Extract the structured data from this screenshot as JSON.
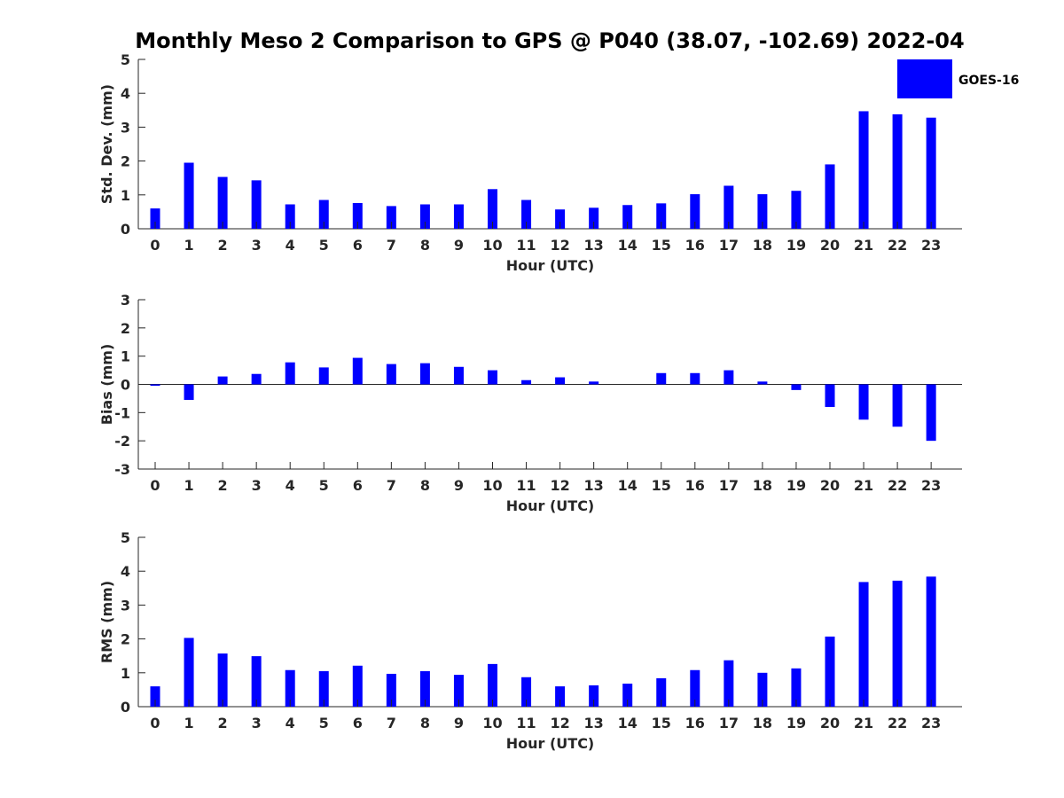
{
  "title": "Monthly Meso 2 Comparison to GPS @ P040 (38.07, -102.69) 2022-04",
  "legend": {
    "label": "GOES-16",
    "color": "#0000ff"
  },
  "chart_data": [
    {
      "type": "bar",
      "panel": "std-dev",
      "xlabel": "Hour (UTC)",
      "ylabel": "Std. Dev. (mm)",
      "ylim": [
        0,
        5
      ],
      "yticks": [
        0,
        1,
        2,
        3,
        4,
        5
      ],
      "categories": [
        "0",
        "1",
        "2",
        "3",
        "4",
        "5",
        "6",
        "7",
        "8",
        "9",
        "10",
        "11",
        "12",
        "13",
        "14",
        "15",
        "16",
        "17",
        "18",
        "19",
        "20",
        "21",
        "22",
        "23"
      ],
      "series": [
        {
          "name": "GOES-16",
          "color": "#0000ff",
          "values": [
            0.6,
            1.95,
            1.53,
            1.43,
            0.72,
            0.85,
            0.76,
            0.67,
            0.72,
            0.72,
            1.17,
            0.85,
            0.57,
            0.62,
            0.7,
            0.75,
            1.02,
            1.27,
            1.02,
            1.12,
            1.9,
            3.47,
            3.38,
            3.28
          ]
        }
      ],
      "legend": true
    },
    {
      "type": "bar",
      "panel": "bias",
      "xlabel": "Hour (UTC)",
      "ylabel": "Bias (mm)",
      "ylim": [
        -3,
        3
      ],
      "yticks": [
        -3,
        -2,
        -1,
        0,
        1,
        2,
        3
      ],
      "zero_line": true,
      "categories": [
        "0",
        "1",
        "2",
        "3",
        "4",
        "5",
        "6",
        "7",
        "8",
        "9",
        "10",
        "11",
        "12",
        "13",
        "14",
        "15",
        "16",
        "17",
        "18",
        "19",
        "20",
        "21",
        "22",
        "23"
      ],
      "series": [
        {
          "name": "GOES-16",
          "color": "#0000ff",
          "values": [
            -0.05,
            -0.55,
            0.28,
            0.37,
            0.78,
            0.6,
            0.94,
            0.72,
            0.75,
            0.62,
            0.5,
            0.15,
            0.25,
            0.1,
            0.0,
            0.4,
            0.4,
            0.5,
            0.1,
            -0.2,
            -0.8,
            -1.25,
            -1.5,
            -2.0
          ]
        }
      ]
    },
    {
      "type": "bar",
      "panel": "rms",
      "xlabel": "Hour (UTC)",
      "ylabel": "RMS (mm)",
      "ylim": [
        0,
        5
      ],
      "yticks": [
        0,
        1,
        2,
        3,
        4,
        5
      ],
      "categories": [
        "0",
        "1",
        "2",
        "3",
        "4",
        "5",
        "6",
        "7",
        "8",
        "9",
        "10",
        "11",
        "12",
        "13",
        "14",
        "15",
        "16",
        "17",
        "18",
        "19",
        "20",
        "21",
        "22",
        "23"
      ],
      "series": [
        {
          "name": "GOES-16",
          "color": "#0000ff",
          "values": [
            0.6,
            2.03,
            1.57,
            1.49,
            1.08,
            1.05,
            1.21,
            0.97,
            1.05,
            0.94,
            1.26,
            0.87,
            0.6,
            0.63,
            0.68,
            0.84,
            1.08,
            1.37,
            1.0,
            1.13,
            2.07,
            3.68,
            3.72,
            3.84
          ]
        }
      ]
    }
  ]
}
